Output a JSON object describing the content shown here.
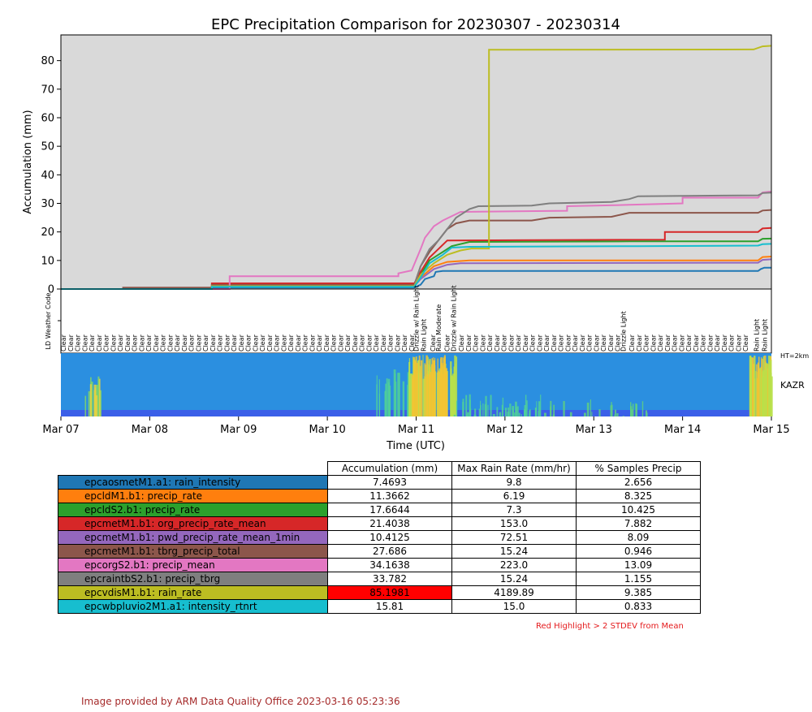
{
  "chart_data": {
    "type": "line",
    "title": "EPC Precipitation Comparison for 20230307 - 20230314",
    "xlabel": "Time (UTC)",
    "ylabel": "Accumulation (mm)",
    "x_ticks": [
      "Mar 07",
      "Mar 08",
      "Mar 09",
      "Mar 10",
      "Mar 11",
      "Mar 12",
      "Mar 13",
      "Mar 14",
      "Mar 15"
    ],
    "y_ticks": [
      0,
      10,
      20,
      30,
      40,
      50,
      60,
      70,
      80
    ],
    "xlim": [
      0,
      8
    ],
    "ylim": [
      0,
      89
    ],
    "background": "#d9d9d9",
    "weather_ylabel": "LD Weather Code",
    "kazr_label": "KAZR",
    "kazr_height_label": "HT=2km",
    "weather_codes": [
      {
        "x": 4.0,
        "label": "Drizzle w/ Rain Light"
      },
      {
        "x": 4.08,
        "label": "Rain Light"
      },
      {
        "x": 4.25,
        "label": "Rain Moderate"
      },
      {
        "x": 4.42,
        "label": "Drizzle w/ Rain Light"
      },
      {
        "x": 6.33,
        "label": "Drizzle Light"
      },
      {
        "x": 7.83,
        "label": "Rain Light"
      },
      {
        "x": 7.92,
        "label": "Rain Light"
      }
    ],
    "clear_label": "Clear",
    "series": [
      {
        "name": "epcaosmetM1.a1: rain_intensity",
        "color": "#1f77b4",
        "points": [
          [
            0,
            0
          ],
          [
            1.7,
            0
          ],
          [
            1.7,
            0.5
          ],
          [
            3.98,
            0.5
          ],
          [
            4.05,
            1.5
          ],
          [
            4.1,
            3.5
          ],
          [
            4.2,
            4.5
          ],
          [
            4.22,
            6
          ],
          [
            4.3,
            6.3
          ],
          [
            7.85,
            6.3
          ],
          [
            7.88,
            7
          ],
          [
            7.92,
            7.47
          ],
          [
            8,
            7.47
          ]
        ]
      },
      {
        "name": "epcldM1.b1: precip_rate",
        "color": "#ff7f0e",
        "points": [
          [
            0,
            0
          ],
          [
            1.7,
            0
          ],
          [
            1.7,
            1.2
          ],
          [
            3.98,
            1.2
          ],
          [
            4.05,
            4
          ],
          [
            4.2,
            8
          ],
          [
            4.35,
            9.5
          ],
          [
            4.6,
            10
          ],
          [
            7.85,
            10
          ],
          [
            7.9,
            11.2
          ],
          [
            8,
            11.37
          ]
        ]
      },
      {
        "name": "epcldS2.b1: precip_rate",
        "color": "#2ca02c",
        "points": [
          [
            0,
            0
          ],
          [
            1.7,
            0
          ],
          [
            1.7,
            1.5
          ],
          [
            3.98,
            1.5
          ],
          [
            4.05,
            5
          ],
          [
            4.15,
            10
          ],
          [
            4.3,
            13
          ],
          [
            4.4,
            15
          ],
          [
            4.6,
            16.5
          ],
          [
            6.4,
            16.7
          ],
          [
            7.85,
            16.7
          ],
          [
            7.9,
            17.6
          ],
          [
            8,
            17.66
          ]
        ]
      },
      {
        "name": "epcmetM1.b1: org_precip_rate_mean",
        "color": "#d62728",
        "points": [
          [
            0,
            0
          ],
          [
            1.7,
            0
          ],
          [
            1.7,
            2
          ],
          [
            3.98,
            2
          ],
          [
            4.05,
            6
          ],
          [
            4.15,
            11
          ],
          [
            4.25,
            14
          ],
          [
            4.35,
            17
          ],
          [
            6.8,
            17.3
          ],
          [
            6.8,
            20
          ],
          [
            7.85,
            20
          ],
          [
            7.9,
            21.2
          ],
          [
            8,
            21.4
          ]
        ]
      },
      {
        "name": "epcmetM1.b1: pwd_precip_rate_mean_1min",
        "color": "#9467bd",
        "points": [
          [
            0,
            0
          ],
          [
            1.7,
            0
          ],
          [
            1.7,
            1
          ],
          [
            3.98,
            1
          ],
          [
            4.05,
            3.5
          ],
          [
            4.2,
            7
          ],
          [
            4.35,
            8.5
          ],
          [
            4.5,
            9
          ],
          [
            7.85,
            9.2
          ],
          [
            7.9,
            10.2
          ],
          [
            8,
            10.41
          ]
        ]
      },
      {
        "name": "epcmetM1.b1: tbrg_precip_total",
        "color": "#8c564b",
        "points": [
          [
            0,
            0
          ],
          [
            0.7,
            0
          ],
          [
            0.7,
            0.5
          ],
          [
            1.7,
            0.5
          ],
          [
            1.7,
            1.5
          ],
          [
            3.98,
            1.5
          ],
          [
            4.05,
            8
          ],
          [
            4.15,
            13
          ],
          [
            4.25,
            17
          ],
          [
            4.35,
            21
          ],
          [
            4.45,
            23
          ],
          [
            4.6,
            24
          ],
          [
            5.3,
            24
          ],
          [
            5.5,
            25
          ],
          [
            6.2,
            25.3
          ],
          [
            6.4,
            26.7
          ],
          [
            7.85,
            26.7
          ],
          [
            7.9,
            27.5
          ],
          [
            8,
            27.69
          ]
        ]
      },
      {
        "name": "epcorgS2.b1: precip_mean",
        "color": "#e377c2",
        "points": [
          [
            0,
            0
          ],
          [
            1.9,
            0
          ],
          [
            1.9,
            4.5
          ],
          [
            3.8,
            4.5
          ],
          [
            3.8,
            5.5
          ],
          [
            3.95,
            6.5
          ],
          [
            4.05,
            14
          ],
          [
            4.1,
            18
          ],
          [
            4.2,
            22
          ],
          [
            4.3,
            24
          ],
          [
            4.5,
            27
          ],
          [
            5.7,
            27.4
          ],
          [
            5.7,
            29
          ],
          [
            6.4,
            29.5
          ],
          [
            7.0,
            30
          ],
          [
            7.0,
            32
          ],
          [
            7.85,
            32
          ],
          [
            7.9,
            33.8
          ],
          [
            8,
            34.16
          ]
        ]
      },
      {
        "name": "epcraintbS2.b1: precip_tbrg",
        "color": "#7f7f7f",
        "points": [
          [
            0,
            0
          ],
          [
            1.7,
            0
          ],
          [
            1.7,
            1
          ],
          [
            3.98,
            1
          ],
          [
            4.05,
            8
          ],
          [
            4.15,
            14
          ],
          [
            4.25,
            17
          ],
          [
            4.35,
            21
          ],
          [
            4.45,
            25
          ],
          [
            4.6,
            28
          ],
          [
            4.7,
            29
          ],
          [
            5.3,
            29.2
          ],
          [
            5.5,
            30
          ],
          [
            6.2,
            30.5
          ],
          [
            6.4,
            31.5
          ],
          [
            6.5,
            32.5
          ],
          [
            7.85,
            32.8
          ],
          [
            7.9,
            33.6
          ],
          [
            8,
            33.78
          ]
        ]
      },
      {
        "name": "epcvdisM1.b1: rain_rate",
        "color": "#bcbd22",
        "points": [
          [
            0,
            0
          ],
          [
            1.7,
            0
          ],
          [
            1.7,
            1
          ],
          [
            3.98,
            1
          ],
          [
            4.05,
            5
          ],
          [
            4.2,
            9
          ],
          [
            4.35,
            12
          ],
          [
            4.5,
            13.5
          ],
          [
            4.62,
            14.2
          ],
          [
            4.62,
            14.2
          ],
          [
            4.82,
            14.2
          ],
          [
            4.82,
            83.8
          ],
          [
            7.8,
            83.9
          ],
          [
            7.9,
            85
          ],
          [
            8,
            85.2
          ]
        ]
      },
      {
        "name": "epcwbpluvio2M1.a1: intensity_rtnrt",
        "color": "#17becf",
        "points": [
          [
            0,
            0
          ],
          [
            1.7,
            0
          ],
          [
            1.7,
            0.8
          ],
          [
            3.98,
            0.8
          ],
          [
            4.05,
            4
          ],
          [
            4.15,
            9
          ],
          [
            4.3,
            12
          ],
          [
            4.4,
            14.5
          ],
          [
            4.6,
            14.8
          ],
          [
            6.5,
            15
          ],
          [
            7.85,
            15.2
          ],
          [
            7.9,
            15.7
          ],
          [
            8,
            15.81
          ]
        ]
      }
    ]
  },
  "table": {
    "headers": [
      "Accumulation (mm)",
      "Max Rain Rate (mm/hr)",
      "% Samples Precip"
    ],
    "rows": [
      {
        "name": "epcaosmetM1.a1: rain_intensity",
        "color": "#1f77b4",
        "acc": "7.4693",
        "max": "9.8",
        "pct": "2.656",
        "highlight": false
      },
      {
        "name": "epcldM1.b1: precip_rate",
        "color": "#ff7f0e",
        "acc": "11.3662",
        "max": "6.19",
        "pct": "8.325",
        "highlight": false
      },
      {
        "name": "epcldS2.b1: precip_rate",
        "color": "#2ca02c",
        "acc": "17.6644",
        "max": "7.3",
        "pct": "10.425",
        "highlight": false
      },
      {
        "name": "epcmetM1.b1: org_precip_rate_mean",
        "color": "#d62728",
        "acc": "21.4038",
        "max": "153.0",
        "pct": "7.882",
        "highlight": false
      },
      {
        "name": "epcmetM1.b1: pwd_precip_rate_mean_1min",
        "color": "#9467bd",
        "acc": "10.4125",
        "max": "72.51",
        "pct": "8.09",
        "highlight": false
      },
      {
        "name": "epcmetM1.b1: tbrg_precip_total",
        "color": "#8c564b",
        "acc": "27.686",
        "max": "15.24",
        "pct": "0.946",
        "highlight": false
      },
      {
        "name": "epcorgS2.b1: precip_mean",
        "color": "#e377c2",
        "acc": "34.1638",
        "max": "223.0",
        "pct": "13.09",
        "highlight": false
      },
      {
        "name": "epcraintbS2.b1: precip_tbrg",
        "color": "#7f7f7f",
        "acc": "33.782",
        "max": "15.24",
        "pct": "1.155",
        "highlight": false
      },
      {
        "name": "epcvdisM1.b1: rain_rate",
        "color": "#bcbd22",
        "acc": "85.1981",
        "max": "4189.89",
        "pct": "9.385",
        "highlight": true
      },
      {
        "name": "epcwbpluvio2M1.a1: intensity_rtnrt",
        "color": "#17becf",
        "acc": "15.81",
        "max": "15.0",
        "pct": "0.833",
        "highlight": false
      }
    ],
    "highlight_color": "#ff0000",
    "footnote": "Red Highlight > 2 STDEV from Mean"
  },
  "credit": "Image provided by ARM Data Quality Office 2023-03-16 05:23:36"
}
